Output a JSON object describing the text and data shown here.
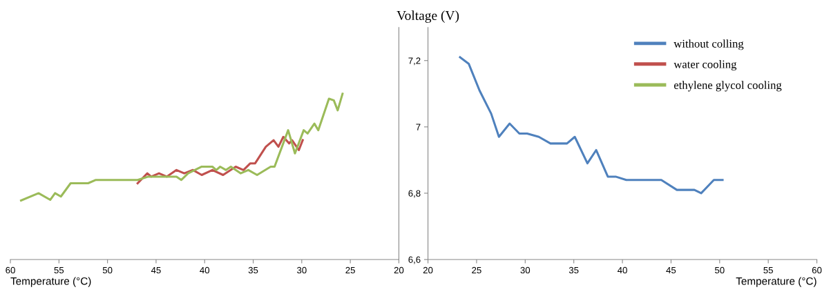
{
  "chart_data": [
    {
      "type": "line",
      "xlabel": "Temperature (°C)",
      "xlim": [
        60,
        20
      ],
      "xticks": [
        60,
        55,
        50,
        45,
        40,
        35,
        30,
        25,
        20
      ],
      "ylim": [
        6.6,
        7.3
      ],
      "tick_labels": "x",
      "grid": false,
      "legend": "top right",
      "line_style": "solid",
      "marker": "none",
      "series": [
        {
          "name": "water cooling",
          "color": "#c0504d",
          "x": [
            46.9,
            45.9,
            45.5,
            44.7,
            43.9,
            42.9,
            42.1,
            41.2,
            40.3,
            39.2,
            38.1,
            36.8,
            36.0,
            35.3,
            34.8,
            33.7,
            32.9,
            32.4,
            31.9,
            31.3,
            31.0,
            30.3,
            29.9
          ],
          "values": [
            6.83,
            6.86,
            6.85,
            6.86,
            6.85,
            6.87,
            6.86,
            6.87,
            6.855,
            6.87,
            6.855,
            6.88,
            6.87,
            6.89,
            6.89,
            6.94,
            6.96,
            6.94,
            6.97,
            6.95,
            6.96,
            6.93,
            6.96
          ]
        },
        {
          "name": "ethylene glycol cooling",
          "color": "#9bbb59",
          "x": [
            58.9,
            57.1,
            55.9,
            55.4,
            54.8,
            53.8,
            52.0,
            51.2,
            46.9,
            45.8,
            42.9,
            42.4,
            41.7,
            40.3,
            39.2,
            38.8,
            38.4,
            37.8,
            37.3,
            36.3,
            35.5,
            34.6,
            33.2,
            32.8,
            31.4,
            30.7,
            29.8,
            29.4,
            28.7,
            28.3,
            27.2,
            26.7,
            26.3,
            25.8
          ],
          "values": [
            6.778,
            6.8,
            6.78,
            6.8,
            6.79,
            6.83,
            6.83,
            6.84,
            6.84,
            6.85,
            6.85,
            6.84,
            6.86,
            6.88,
            6.88,
            6.87,
            6.88,
            6.87,
            6.88,
            6.86,
            6.87,
            6.855,
            6.88,
            6.88,
            6.99,
            6.92,
            6.99,
            6.98,
            7.01,
            6.99,
            7.085,
            7.08,
            7.05,
            7.1
          ]
        }
      ]
    },
    {
      "type": "line",
      "xlabel": "Temperature (°C)",
      "ylabel": "Voltage (V)",
      "xlim": [
        20,
        60
      ],
      "xticks": [
        20,
        25,
        30,
        35,
        40,
        45,
        50,
        55,
        60
      ],
      "ylim": [
        6.6,
        7.3
      ],
      "yticks": [
        {
          "value": 6.6,
          "label": "6,6"
        },
        {
          "value": 6.8,
          "label": "6,8"
        },
        {
          "value": 7,
          "label": "7"
        },
        {
          "value": 7.2,
          "label": "7,2"
        }
      ],
      "grid": false,
      "legend": "top right",
      "line_style": "solid",
      "marker": "none",
      "series": [
        {
          "name": "without colling",
          "color": "#4f81bd",
          "x": [
            23.3,
            24.2,
            25.3,
            26.5,
            27.3,
            28.4,
            29.4,
            30.2,
            31.4,
            32.6,
            34.3,
            35.1,
            36.4,
            37.3,
            38.5,
            39.3,
            40.4,
            44.0,
            45.6,
            47.4,
            48.1,
            49.4,
            50.3
          ],
          "values": [
            7.21,
            7.19,
            7.11,
            7.04,
            6.97,
            7.01,
            6.98,
            6.98,
            6.97,
            6.95,
            6.95,
            6.97,
            6.89,
            6.93,
            6.85,
            6.85,
            6.84,
            6.84,
            6.81,
            6.81,
            6.8,
            6.84,
            6.84
          ]
        }
      ]
    }
  ]
}
